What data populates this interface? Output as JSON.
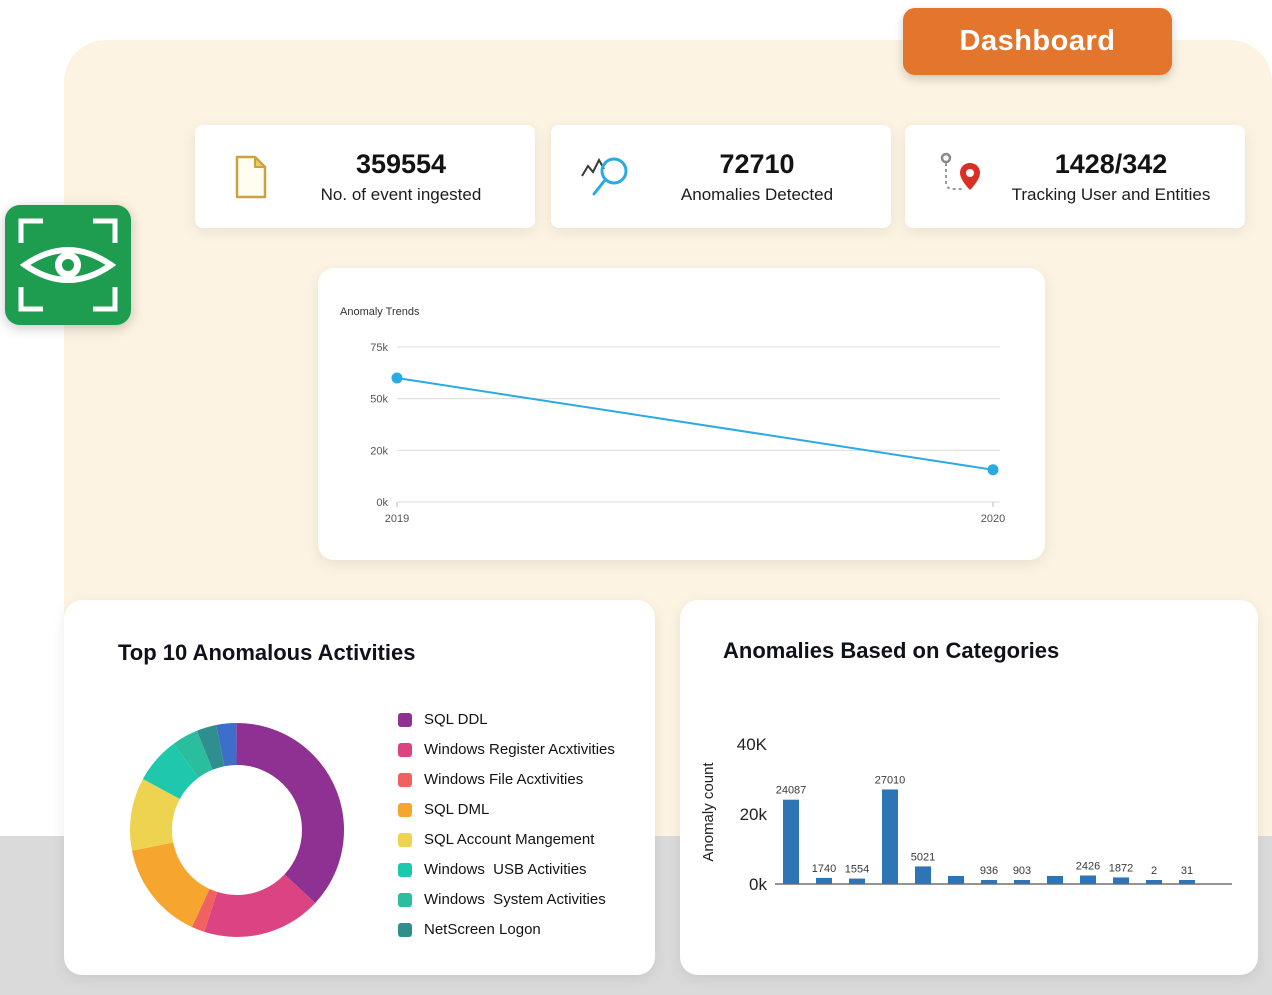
{
  "header": {
    "dashboard_label": "Dashboard"
  },
  "brand": {
    "icon": "eye-scan-icon",
    "color": "#1E9C50"
  },
  "stats": [
    {
      "icon": "document-icon",
      "value": "359554",
      "label": "No. of event ingested"
    },
    {
      "icon": "anomaly-search-icon",
      "value": "72710",
      "label": "Anomalies Detected"
    },
    {
      "icon": "tracking-pin-icon",
      "value": "1428/342",
      "label": "Tracking User and Entities"
    }
  ],
  "colors": {
    "panel_cream": "#FCF3E2",
    "accent_orange": "#E4752D",
    "brand_green": "#1E9C50",
    "bottom_band_gray": "#DADADA"
  },
  "chart_data": [
    {
      "id": "anomaly_trends",
      "type": "line",
      "title": "Anomaly Trends",
      "x": [
        "2019",
        "2020"
      ],
      "values": [
        60000,
        12500
      ],
      "yticks": [
        "0k",
        "20k",
        "50k",
        "75k"
      ],
      "ytick_values": [
        0,
        20000,
        50000,
        75000
      ],
      "ylim": [
        0,
        75000
      ],
      "line_color": "#29ABE2",
      "grid": true,
      "legend_position": "none"
    },
    {
      "id": "top10_donut",
      "type": "pie",
      "title": "Top 10 Anomalous Activities",
      "donut": true,
      "legend_position": "right",
      "segments": [
        {
          "label": "SQL DDL",
          "value": 37,
          "color": "#8E3192"
        },
        {
          "label": "Windows Register Acxtivities",
          "value": 18,
          "color": "#DB4382"
        },
        {
          "label": "Windows File Acxtivities",
          "value": 2,
          "color": "#F0615F"
        },
        {
          "label": "SQL DML",
          "value": 15,
          "color": "#F6A62F"
        },
        {
          "label": "SQL Account Mangement",
          "value": 11,
          "color": "#EDD34F"
        },
        {
          "label": "Windows  USB Activities",
          "value": 7,
          "color": "#1FC8AD"
        },
        {
          "label": "Windows  System Activities",
          "value": 4,
          "color": "#2BBE9E"
        },
        {
          "label": "NetScreen Logon",
          "value": 3,
          "color": "#2F8F8F"
        },
        {
          "label": "",
          "value": 3,
          "color": "#3D6EC9"
        }
      ]
    },
    {
      "id": "categories_bar",
      "type": "bar",
      "title": "Anomalies Based on Categories",
      "ylabel": "Anomaly count",
      "yticks": [
        "0k",
        "20k",
        "40K"
      ],
      "ylim": [
        0,
        40000
      ],
      "values": [
        24087,
        1740,
        1554,
        27010,
        5021,
        2300,
        936,
        903,
        2300,
        2426,
        1872,
        2,
        31
      ],
      "labels": [
        "24087",
        "1740",
        "1554",
        "27010",
        "5021",
        "",
        "936",
        "903",
        "",
        "2426",
        "1872",
        "2",
        "31"
      ],
      "bar_color": "#2E75B6",
      "grid": false
    }
  ]
}
